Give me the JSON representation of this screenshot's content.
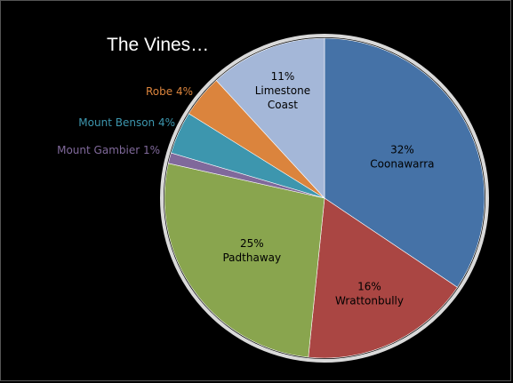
{
  "chart_data": {
    "type": "pie",
    "title": "The Vines…",
    "start_angle_deg": 0,
    "direction": "clockwise",
    "rim_color": "#d9d9d9",
    "slices": [
      {
        "label": "Coonawarra",
        "value": 32,
        "display": "32%",
        "color": "#4572a7",
        "label_position": "inside"
      },
      {
        "label": "Wrattonbully",
        "value": 16,
        "display": "16%",
        "color": "#aa4643",
        "label_position": "inside"
      },
      {
        "label": "Padthaway",
        "value": 25,
        "display": "25%",
        "color": "#89a54e",
        "label_position": "inside"
      },
      {
        "label": "Mount Gambier",
        "value": 1,
        "display": "1%",
        "color": "#80699b",
        "label_position": "outside"
      },
      {
        "label": "Mount Benson",
        "value": 4,
        "display": "4%",
        "color": "#3d96ae",
        "label_position": "outside"
      },
      {
        "label": "Robe",
        "value": 4,
        "display": "4%",
        "color": "#db843d",
        "label_position": "outside"
      },
      {
        "label": "Limestone Coast",
        "value": 11,
        "display": "11%",
        "color": "#a4b7d8",
        "label_position": "inside"
      }
    ]
  }
}
